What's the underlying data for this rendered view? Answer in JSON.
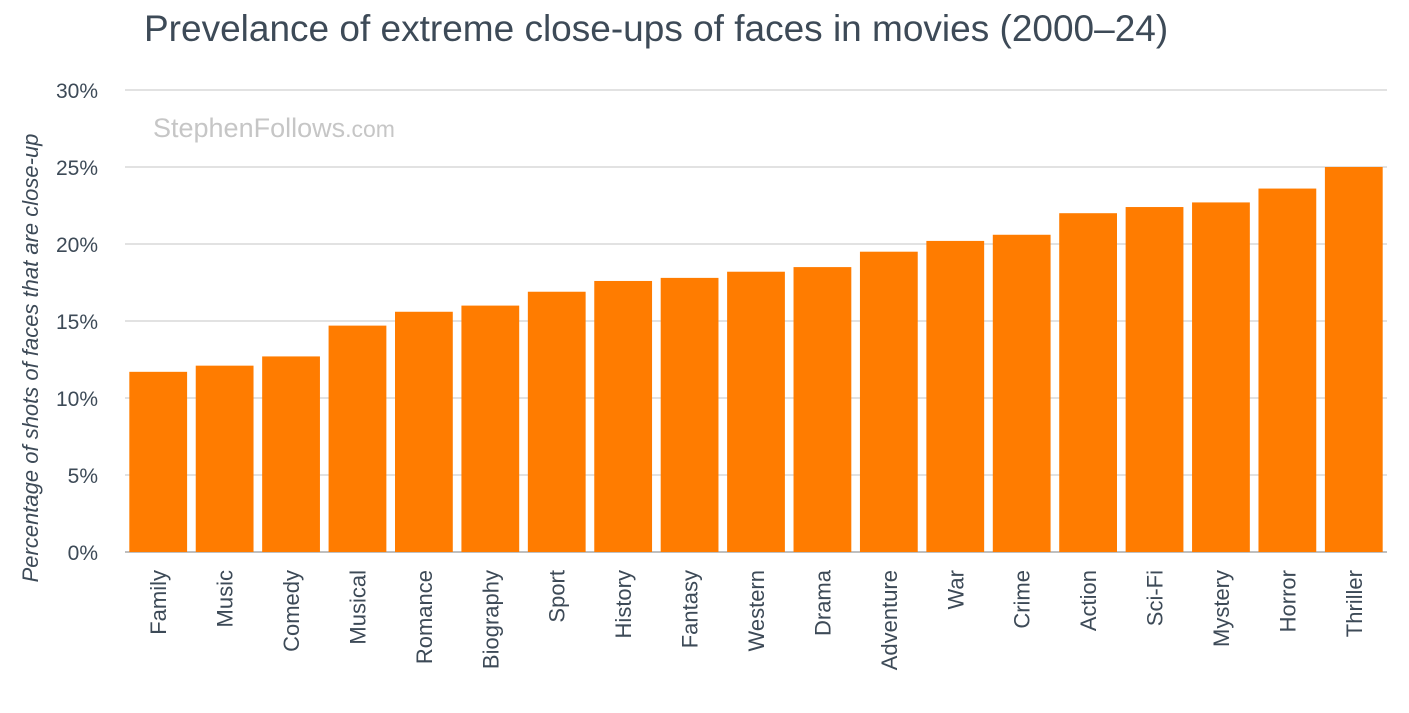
{
  "chart_data": {
    "type": "bar",
    "title": "Prevelance of extreme close-ups of faces in movies (2000–24)",
    "ylabel": "Percentage of shots of faces that are close-up",
    "xlabel": "",
    "categories": [
      "Family",
      "Music",
      "Comedy",
      "Musical",
      "Romance",
      "Biography",
      "Sport",
      "History",
      "Fantasy",
      "Western",
      "Drama",
      "Adventure",
      "War",
      "Crime",
      "Action",
      "Sci-Fi",
      "Mystery",
      "Horror",
      "Thriller"
    ],
    "values": [
      11.7,
      12.1,
      12.7,
      14.7,
      15.6,
      16.0,
      16.9,
      17.6,
      17.8,
      18.2,
      18.5,
      19.5,
      20.2,
      20.6,
      22.0,
      22.4,
      22.7,
      23.6,
      25.0
    ],
    "ylim": [
      0,
      30
    ],
    "yticks": [
      "0%",
      "5%",
      "10%",
      "15%",
      "20%",
      "25%",
      "30%"
    ],
    "grid": true,
    "bar_color": "#ff7c00",
    "grid_color": "#d9d9d9",
    "text_color": "#3d4a57"
  },
  "watermark": {
    "main": "StephenFollows",
    "suffix": ".com"
  }
}
